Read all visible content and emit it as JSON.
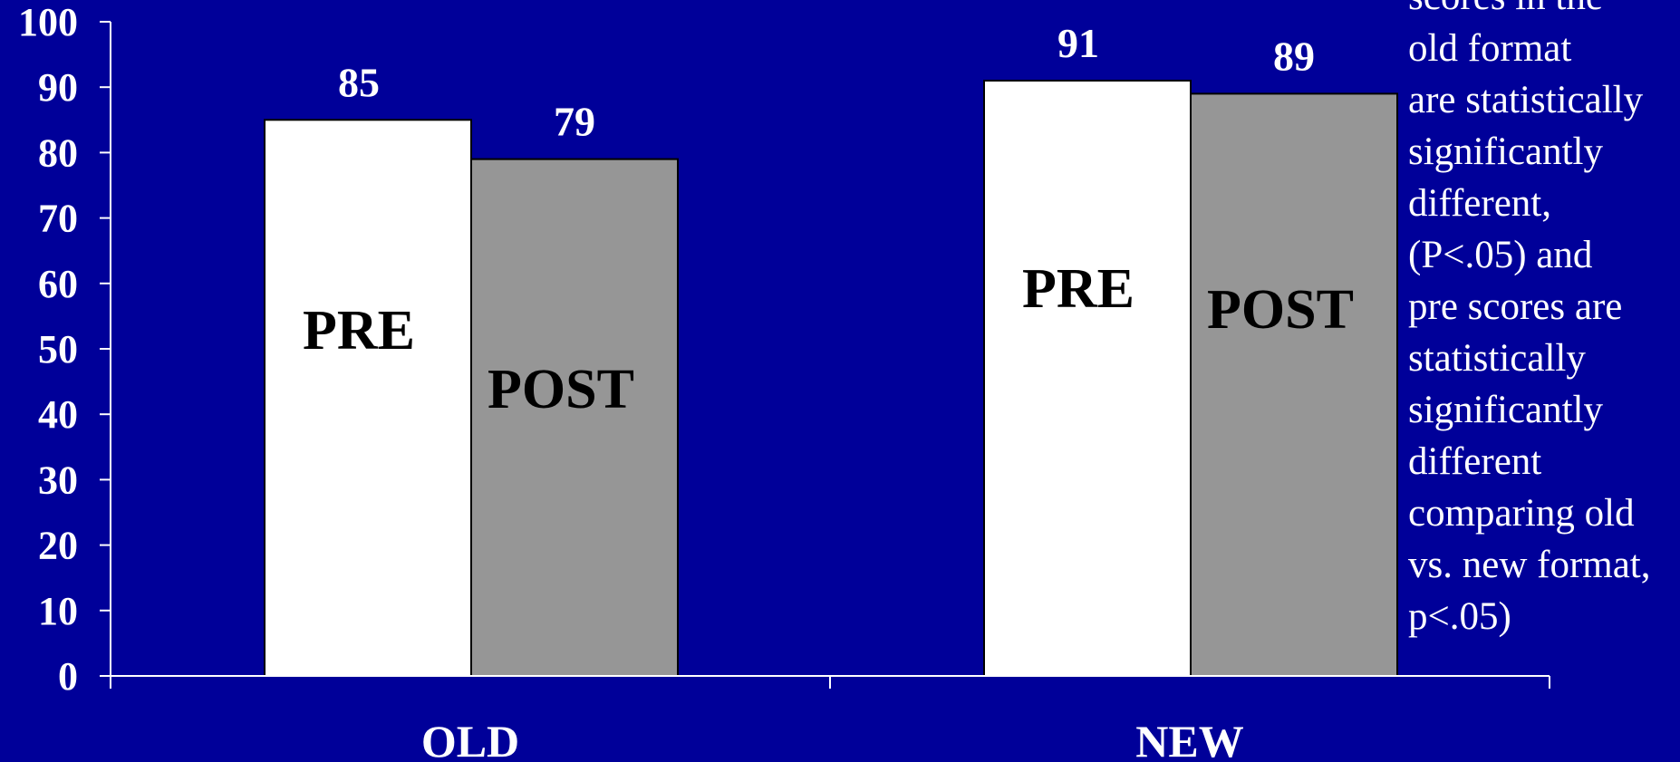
{
  "chart_data": {
    "type": "bar",
    "categories": [
      "OLD",
      "NEW"
    ],
    "series": [
      {
        "name": "PRE",
        "values": [
          85,
          91
        ]
      },
      {
        "name": "POST",
        "values": [
          79,
          89
        ]
      }
    ],
    "data_labels": [
      [
        "85",
        "91"
      ],
      [
        "79",
        "89"
      ]
    ],
    "y_ticks": [
      "0",
      "10",
      "20",
      "30",
      "40",
      "50",
      "60",
      "70",
      "80",
      "90",
      "100"
    ],
    "ylim": [
      0,
      100
    ],
    "grid": false,
    "legend": "none (series names printed inside bars)",
    "colors": {
      "background": "#000099",
      "PRE": "#ffffff",
      "POST": "#969696",
      "axis": "#ffffff"
    },
    "annotation_lines": [
      "scores in the",
      "old format",
      "are statistically",
      "significantly",
      "different,",
      "(P<.05) and",
      "pre scores are",
      "statistically",
      "significantly",
      "different",
      "comparing old",
      "vs. new format,",
      "p<.05)"
    ]
  }
}
